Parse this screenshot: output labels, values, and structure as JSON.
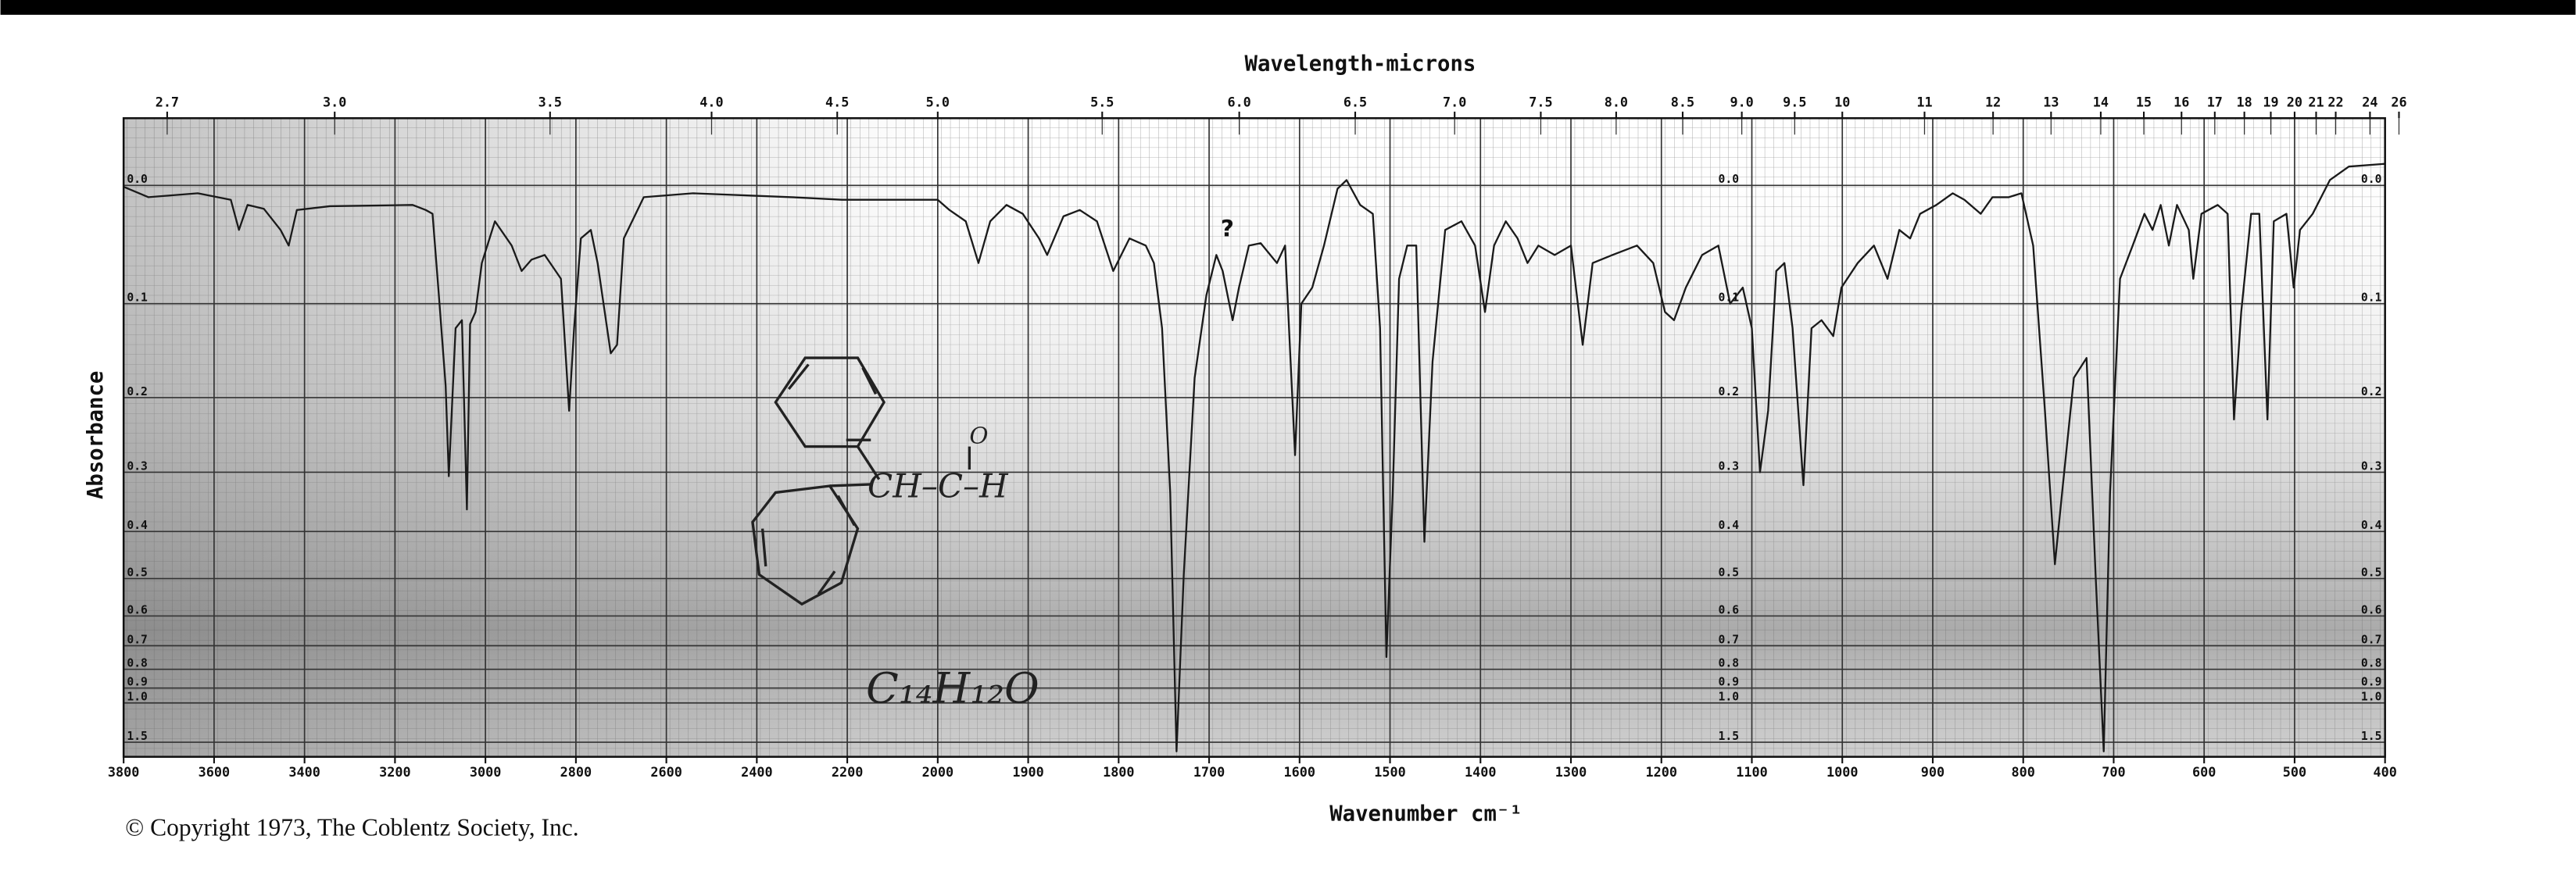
{
  "chart_data": {
    "type": "line",
    "top_axis": {
      "label": "Wavelength-microns",
      "ticks": [
        2.7,
        {
          "value": 3,
          "label": "3.0"
        },
        3.5,
        {
          "value": 4,
          "label": "4.0"
        },
        4.5,
        {
          "value": 5,
          "label": "5.0"
        },
        5.5,
        {
          "value": 6,
          "label": "6.0"
        },
        6.5,
        {
          "value": 7,
          "label": "7.0"
        },
        7.5,
        {
          "value": 8,
          "label": "8.0"
        },
        8.5,
        {
          "value": 9,
          "label": "9.0"
        },
        9.5,
        10,
        11,
        12,
        13,
        14,
        15,
        16,
        17,
        18,
        19,
        20,
        21,
        22,
        24,
        26
      ]
    },
    "x_label": "Wavenumber cm⁻¹",
    "y_label": "Absorbance",
    "yscale": "absorbance",
    "xscale": {
      "break": 2000,
      "ratio": 2
    },
    "xlim": [
      3800,
      400
    ],
    "xticks": [
      3800,
      3600,
      3400,
      3200,
      3000,
      2800,
      2600,
      2400,
      2200,
      2000,
      1900,
      1800,
      1700,
      1600,
      1500,
      1400,
      1300,
      1200,
      1100,
      1000,
      900,
      800,
      700,
      600,
      500,
      400
    ],
    "ylim": [
      -0.048,
      2.2
    ],
    "yticks": [
      {
        "value": 0,
        "label": "0.0"
      },
      0.1,
      0.2,
      0.3,
      0.4,
      0.5,
      0.6,
      0.7,
      0.8,
      0.9,
      {
        "value": 1,
        "label": "1.0"
      },
      1.5
    ],
    "grid": true,
    "color": "#1a1a1a",
    "x": [
      3800,
      3745,
      3636,
      3563,
      3545,
      3526,
      3490,
      3453,
      3435,
      3417,
      3344,
      3161,
      3132,
      3117,
      3103,
      3088,
      3081,
      3066,
      3052,
      3041,
      3034,
      3022,
      3008,
      2979,
      2942,
      2920,
      2898,
      2869,
      2833,
      2815,
      2804,
      2789,
      2767,
      2752,
      2723,
      2709,
      2694,
      2650,
      2541,
      2322,
      2212,
      2103,
      2000,
      1987,
      1969,
      1955,
      1942,
      1924,
      1906,
      1888,
      1879,
      1861,
      1843,
      1824,
      1806,
      1788,
      1770,
      1761,
      1752,
      1743,
      1736,
      1728,
      1716,
      1703,
      1692,
      1685,
      1674,
      1667,
      1656,
      1643,
      1625,
      1616,
      1605,
      1598,
      1586,
      1573,
      1558,
      1548,
      1533,
      1519,
      1511,
      1504,
      1497,
      1490,
      1481,
      1471,
      1462,
      1453,
      1439,
      1421,
      1406,
      1395,
      1385,
      1372,
      1359,
      1348,
      1336,
      1318,
      1300,
      1287,
      1276,
      1254,
      1227,
      1209,
      1196,
      1186,
      1173,
      1155,
      1137,
      1124,
      1110,
      1100,
      1091,
      1082,
      1073,
      1064,
      1055,
      1043,
      1034,
      1023,
      1010,
      1001,
      983,
      965,
      950,
      937,
      925,
      914,
      896,
      878,
      865,
      847,
      834,
      816,
      802,
      789,
      776,
      765,
      757,
      744,
      730,
      720,
      711,
      704,
      693,
      679,
      666,
      657,
      648,
      639,
      630,
      617,
      612,
      603,
      585,
      574,
      567,
      559,
      548,
      539,
      530,
      523,
      509,
      501,
      494,
      480,
      461,
      440,
      400
    ],
    "values": [
      0.001,
      0.009,
      0.006,
      0.011,
      0.035,
      0.015,
      0.018,
      0.035,
      0.048,
      0.019,
      0.016,
      0.015,
      0.019,
      0.022,
      0.092,
      0.186,
      0.306,
      0.124,
      0.116,
      0.36,
      0.12,
      0.108,
      0.063,
      0.028,
      0.048,
      0.07,
      0.06,
      0.056,
      0.077,
      0.216,
      0.124,
      0.042,
      0.035,
      0.063,
      0.15,
      0.141,
      0.042,
      0.009,
      0.006,
      0.009,
      0.011,
      0.011,
      0.011,
      0.019,
      0.028,
      0.063,
      0.028,
      0.015,
      0.022,
      0.042,
      0.056,
      0.024,
      0.019,
      0.028,
      0.07,
      0.042,
      0.048,
      0.063,
      0.124,
      0.332,
      1.8,
      0.49,
      0.177,
      0.092,
      0.056,
      0.07,
      0.116,
      0.085,
      0.048,
      0.046,
      0.063,
      0.048,
      0.275,
      0.1,
      0.085,
      0.048,
      0.0025,
      -0.004,
      0.015,
      0.022,
      0.124,
      0.745,
      0.332,
      0.077,
      0.048,
      0.048,
      0.42,
      0.159,
      0.035,
      0.028,
      0.048,
      0.108,
      0.048,
      0.028,
      0.042,
      0.063,
      0.048,
      0.056,
      0.048,
      0.141,
      0.063,
      0.056,
      0.048,
      0.063,
      0.108,
      0.116,
      0.085,
      0.056,
      0.048,
      0.1,
      0.085,
      0.124,
      0.3,
      0.216,
      0.07,
      0.063,
      0.124,
      0.32,
      0.124,
      0.116,
      0.132,
      0.085,
      0.063,
      0.048,
      0.077,
      0.035,
      0.042,
      0.022,
      0.015,
      0.006,
      0.011,
      0.022,
      0.009,
      0.009,
      0.006,
      0.048,
      0.216,
      0.467,
      0.332,
      0.177,
      0.155,
      0.49,
      1.8,
      0.332,
      0.077,
      0.048,
      0.022,
      0.035,
      0.015,
      0.048,
      0.015,
      0.035,
      0.077,
      0.022,
      0.015,
      0.022,
      0.227,
      0.108,
      0.022,
      0.022,
      0.227,
      0.028,
      0.022,
      0.085,
      0.035,
      0.022,
      -0.004,
      -0.014,
      -0.016
    ],
    "annotations": {
      "question": "?",
      "formula": "C₁₄H₁₂O",
      "group": "CH–C–H",
      "oxygen": "O"
    },
    "copyright": "© Copyright 1973, The Coblentz Society, Inc."
  }
}
